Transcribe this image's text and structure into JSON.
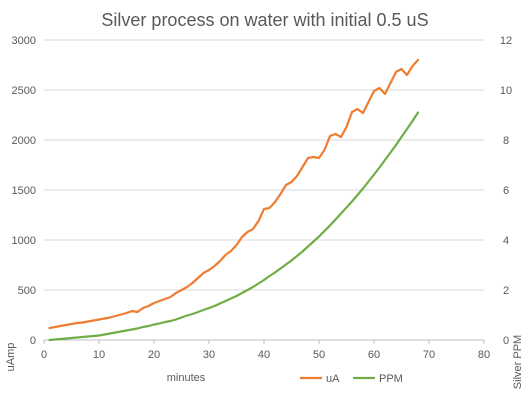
{
  "chart_data": {
    "type": "line",
    "title": "Silver process on water with initial  0.5 uS",
    "xlabel": "minutes",
    "ylabel_left": "uAmp",
    "ylabel_right": "Silver PPM",
    "xlim": [
      0,
      80
    ],
    "ylim_left": [
      0,
      3000
    ],
    "ylim_right": [
      0,
      12
    ],
    "x_ticks": [
      0,
      10,
      20,
      30,
      40,
      50,
      60,
      70,
      80
    ],
    "y_left_ticks": [
      0,
      500,
      1000,
      1500,
      2000,
      2500,
      3000
    ],
    "y_right_ticks": [
      0,
      2,
      4,
      6,
      8,
      10,
      12
    ],
    "grid": true,
    "legend_position": "bottom",
    "series": [
      {
        "name": "uA",
        "axis": "left",
        "color": "#ED7D31",
        "x": [
          1,
          2,
          3,
          4,
          5,
          6,
          7,
          8,
          9,
          10,
          11,
          12,
          13,
          14,
          15,
          16,
          17,
          18,
          19,
          20,
          21,
          22,
          23,
          24,
          25,
          26,
          27,
          28,
          29,
          30,
          31,
          32,
          33,
          34,
          35,
          36,
          37,
          38,
          39,
          40,
          41,
          42,
          43,
          44,
          45,
          46,
          47,
          48,
          49,
          50,
          51,
          52,
          53,
          54,
          55,
          56,
          57,
          58,
          59,
          60,
          61,
          62,
          63,
          64,
          65,
          66,
          67,
          68
        ],
        "values": [
          120,
          130,
          140,
          150,
          160,
          170,
          175,
          185,
          195,
          205,
          215,
          225,
          240,
          255,
          270,
          290,
          280,
          320,
          340,
          370,
          390,
          410,
          430,
          470,
          500,
          530,
          570,
          620,
          670,
          700,
          740,
          790,
          850,
          890,
          950,
          1030,
          1080,
          1110,
          1190,
          1310,
          1320,
          1380,
          1460,
          1550,
          1580,
          1640,
          1730,
          1820,
          1830,
          1820,
          1900,
          2040,
          2060,
          2030,
          2130,
          2280,
          2310,
          2270,
          2380,
          2490,
          2520,
          2460,
          2570,
          2680,
          2710,
          2650,
          2740,
          2800
        ]
      },
      {
        "name": "PPM",
        "axis": "right",
        "color": "#70AD47",
        "x": [
          1,
          2,
          3,
          4,
          5,
          6,
          7,
          8,
          9,
          10,
          11,
          12,
          13,
          14,
          15,
          16,
          17,
          18,
          19,
          20,
          21,
          22,
          23,
          24,
          25,
          26,
          27,
          28,
          29,
          30,
          31,
          32,
          33,
          34,
          35,
          36,
          37,
          38,
          39,
          40,
          41,
          42,
          43,
          44,
          45,
          46,
          47,
          48,
          49,
          50,
          51,
          52,
          53,
          54,
          55,
          56,
          57,
          58,
          59,
          60,
          61,
          62,
          63,
          64,
          65,
          66,
          67,
          68
        ],
        "values": [
          0.0,
          0.02,
          0.04,
          0.06,
          0.08,
          0.1,
          0.12,
          0.14,
          0.16,
          0.18,
          0.22,
          0.26,
          0.3,
          0.34,
          0.38,
          0.42,
          0.46,
          0.52,
          0.56,
          0.62,
          0.66,
          0.72,
          0.76,
          0.82,
          0.9,
          0.98,
          1.04,
          1.12,
          1.2,
          1.28,
          1.36,
          1.46,
          1.56,
          1.66,
          1.76,
          1.88,
          2.0,
          2.12,
          2.26,
          2.4,
          2.56,
          2.7,
          2.86,
          3.02,
          3.18,
          3.36,
          3.54,
          3.74,
          3.94,
          4.14,
          4.36,
          4.58,
          4.82,
          5.06,
          5.3,
          5.54,
          5.8,
          6.06,
          6.34,
          6.62,
          6.9,
          7.2,
          7.5,
          7.8,
          8.12,
          8.44,
          8.76,
          9.1
        ]
      }
    ]
  }
}
